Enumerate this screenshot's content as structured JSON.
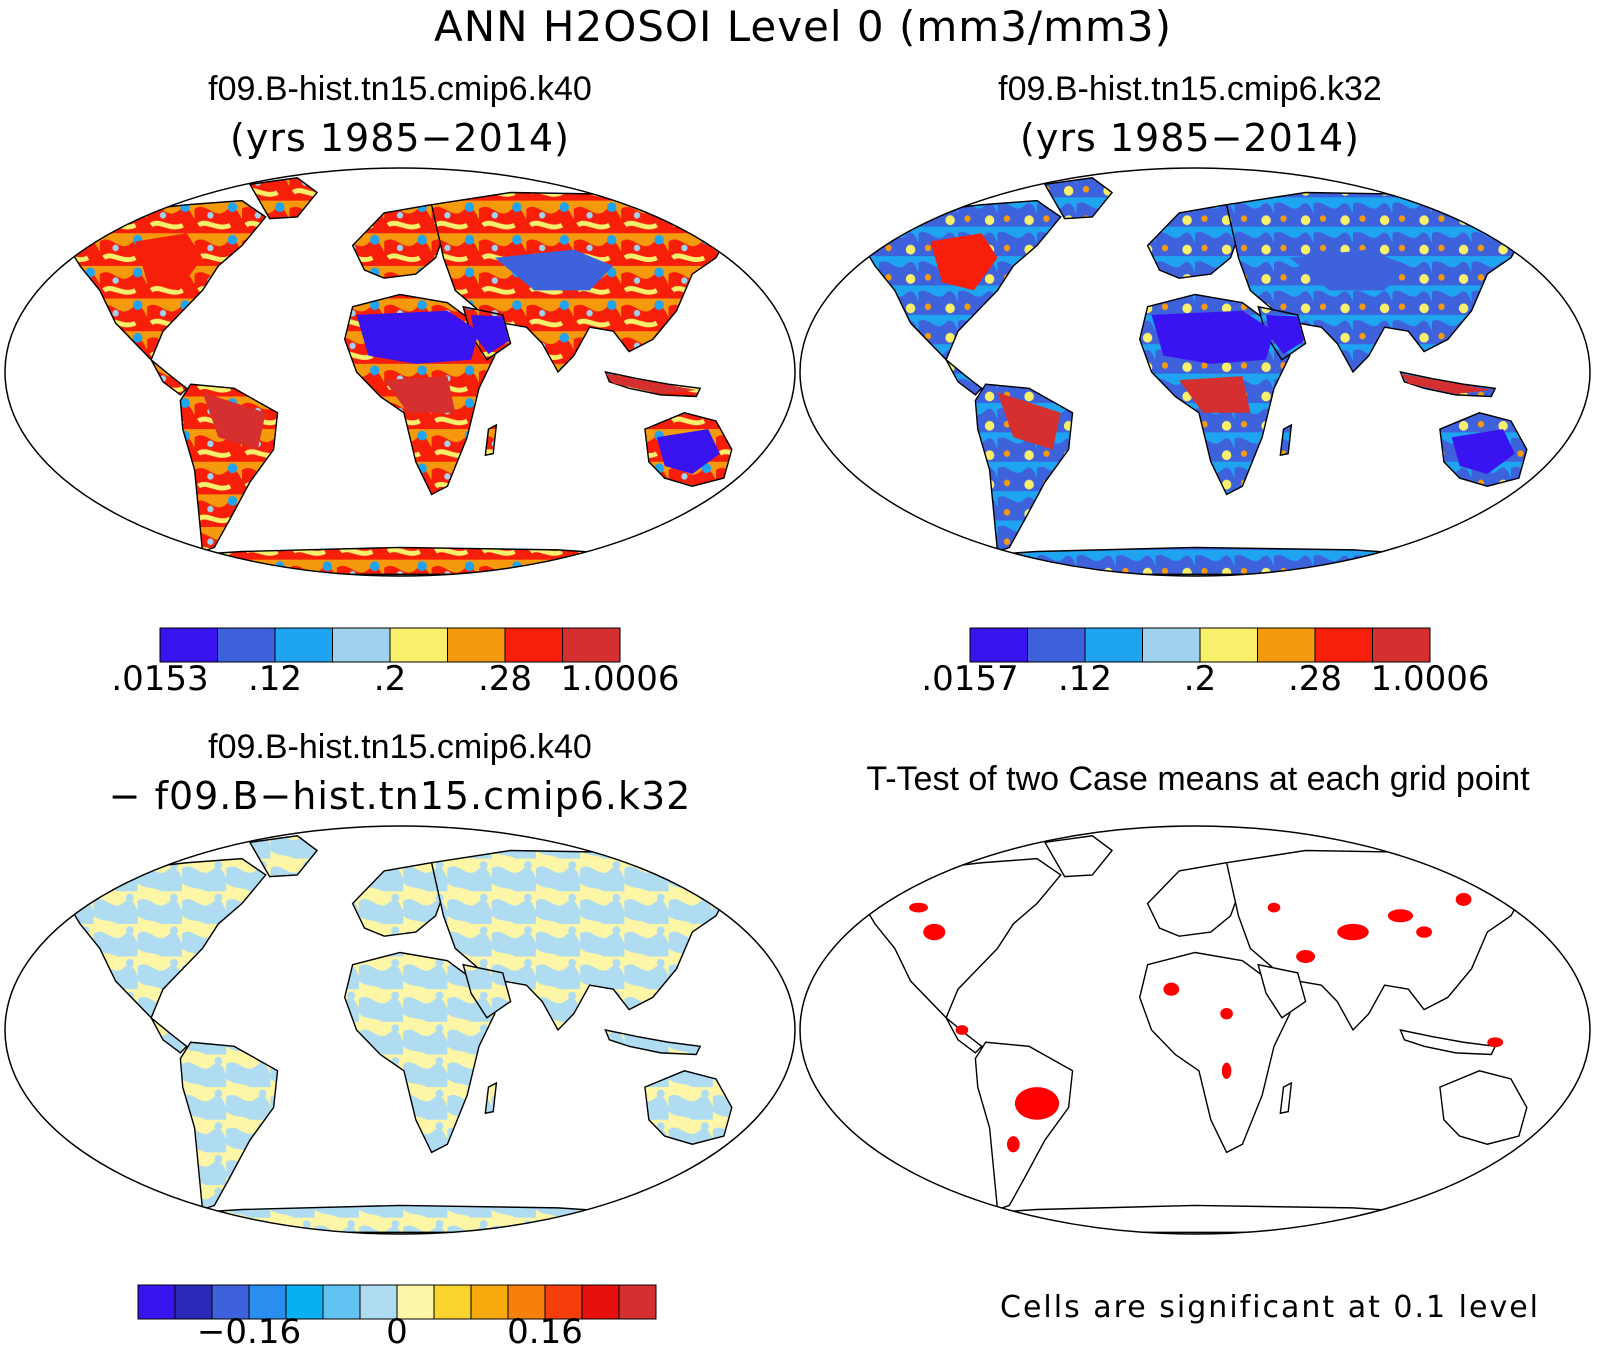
{
  "figure": {
    "title": "ANN H2OSOI Level 0 (mm3/mm3)"
  },
  "panels": [
    {
      "id": "case1",
      "title": "f09.B-hist.tn15.cmip6.k40",
      "subtitle": "(yrs 1985−2014)",
      "colorbar": {
        "colors": [
          "#3a14f0",
          "#3e62dc",
          "#1fa4f2",
          "#9ed2ee",
          "#f8f06a",
          "#f59a0c",
          "#f71f0a",
          "#d5302f"
        ],
        "labels": [
          ".0153",
          ".12",
          ".2",
          ".28",
          "1.0006"
        ]
      }
    },
    {
      "id": "case2",
      "title": "f09.B-hist.tn15.cmip6.k32",
      "subtitle": "(yrs 1985−2014)",
      "colorbar": {
        "colors": [
          "#3a14f0",
          "#3e62dc",
          "#1fa4f2",
          "#9ed2ee",
          "#f8f06a",
          "#f59a0c",
          "#f71f0a",
          "#d5302f"
        ],
        "labels": [
          ".0157",
          ".12",
          ".2",
          ".28",
          "1.0006"
        ]
      }
    },
    {
      "id": "difference",
      "title": "f09.B-hist.tn15.cmip6.k40",
      "subtitle": "− f09.B−hist.tn15.cmip6.k32",
      "colorbar": {
        "colors": [
          "#3a14f0",
          "#2a2ab8",
          "#3e62dc",
          "#2a8ef0",
          "#08b0f2",
          "#62c2f2",
          "#b0dcf2",
          "#fcf6a6",
          "#fad42e",
          "#f7aa0e",
          "#f7800a",
          "#f53e0c",
          "#e8100c",
          "#d5302f"
        ],
        "labels": [
          "−0.16",
          "0",
          "0.16"
        ]
      }
    },
    {
      "id": "ttest",
      "title": "T-Test of two Case means at each grid point",
      "footnote": "Cells are significant at 0.1 level"
    }
  ],
  "map": {
    "land_outline": "#000000",
    "ocean": "#ffffff"
  }
}
